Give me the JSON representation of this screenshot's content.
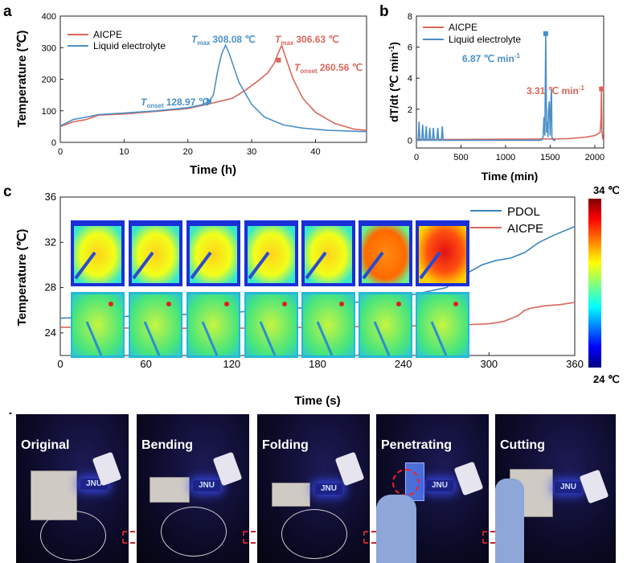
{
  "panel_labels": {
    "a": "a",
    "b": "b",
    "c": "c",
    "d": "d"
  },
  "chart_data": [
    {
      "id": "a",
      "type": "line",
      "xlabel": "Time (h)",
      "ylabel": "Temperature (℃)",
      "xlim": [
        0,
        48
      ],
      "ylim": [
        0,
        400
      ],
      "xticks": [
        "0",
        "10",
        "20",
        "30",
        "40"
      ],
      "yticks": [
        "0",
        "100",
        "200",
        "300",
        "400"
      ],
      "legend": "top-left",
      "series": [
        {
          "name": "AICPE",
          "color": "#d9665a",
          "x": [
            0,
            2,
            4,
            6,
            10,
            15,
            20,
            24,
            27,
            29,
            31,
            32.5,
            33.5,
            34.3,
            34.7,
            35.3,
            36.5,
            38,
            40,
            43,
            46,
            48
          ],
          "y": [
            50,
            65,
            72,
            86,
            90,
            98,
            107,
            125,
            140,
            165,
            195,
            220,
            250,
            290,
            306.63,
            270,
            200,
            140,
            95,
            60,
            42,
            38
          ]
        },
        {
          "name": "Liquid electrolyte",
          "color": "#4a90c8",
          "x": [
            0,
            2,
            4,
            6,
            10,
            15,
            20,
            22,
            23.3,
            24,
            24.7,
            25.3,
            25.9,
            26.5,
            28,
            30,
            32,
            35,
            38,
            42,
            48
          ],
          "y": [
            52,
            72,
            80,
            88,
            93,
            100,
            110,
            118,
            128.97,
            150,
            230,
            280,
            308.08,
            280,
            190,
            120,
            80,
            55,
            45,
            38,
            34
          ]
        }
      ],
      "markers": [
        {
          "series": "Liquid electrolyte",
          "x": 23.3,
          "y": 128.97
        },
        {
          "series": "AICPE",
          "x": 34.2,
          "y": 260.56
        }
      ],
      "annotations": [
        {
          "sym": "T",
          "sub": "max",
          "value": "308.08 ℃",
          "color": "#4a90c8"
        },
        {
          "sym": "T",
          "sub": "max",
          "value": "306.63 ℃",
          "color": "#d9665a"
        },
        {
          "sym": "T",
          "sub": "onset",
          "value": "128.97 ℃",
          "color": "#4a90c8"
        },
        {
          "sym": "T",
          "sub": "onset",
          "value": "260.56 ℃",
          "color": "#d9665a"
        }
      ]
    },
    {
      "id": "b",
      "type": "line",
      "xlabel": "Time (min)",
      "ylabel_parts": [
        "dT/dt (℃ min",
        "-1",
        ")"
      ],
      "xlim": [
        0,
        2100
      ],
      "ylim": [
        -0.5,
        8
      ],
      "xticks": [
        "0",
        "500",
        "1000",
        "1500",
        "2000"
      ],
      "yticks": [
        "0",
        "2",
        "4",
        "6",
        "8"
      ],
      "legend": "top-left",
      "series": [
        {
          "name": "AICPE",
          "color": "#d9665a",
          "x": [
            0,
            400,
            800,
            1200,
            1500,
            1700,
            1900,
            2000,
            2060,
            2070,
            2075,
            2080,
            2090,
            2100
          ],
          "y": [
            0.05,
            0.05,
            0.06,
            0.07,
            0.08,
            0.1,
            0.2,
            0.3,
            0.5,
            1.5,
            3.31,
            0.6,
            0.1,
            0.0
          ]
        },
        {
          "name": "Liquid electrolyte",
          "color": "#4a90c8",
          "x": [
            0,
            20,
            30,
            40,
            60,
            70,
            80,
            100,
            110,
            120,
            140,
            150,
            160,
            180,
            190,
            200,
            230,
            240,
            250,
            280,
            290,
            300,
            330,
            600,
            900,
            1200,
            1400,
            1420,
            1430,
            1440,
            1450,
            1460,
            1470,
            1475,
            1480,
            1490,
            1500,
            1510,
            1515,
            1520,
            1525,
            1530,
            1540,
            1560
          ],
          "y": [
            0,
            0,
            1.2,
            0,
            0,
            1.0,
            0,
            0,
            0.9,
            0,
            0,
            0.8,
            0,
            0,
            0.8,
            0,
            0,
            0.8,
            0,
            0,
            0.9,
            0,
            0,
            0,
            0,
            0,
            0,
            0.2,
            1.5,
            0.3,
            6.87,
            0.5,
            1.2,
            0.2,
            1.8,
            2.5,
            0.3,
            2.8,
            3.3,
            0.2,
            0.1,
            0.05,
            0,
            0
          ]
        }
      ],
      "markers": [
        {
          "series": "Liquid electrolyte",
          "x": 1450,
          "y": 6.87
        },
        {
          "series": "AICPE",
          "x": 2075,
          "y": 3.31
        }
      ],
      "annotations": [
        {
          "value": "6.87 ℃ min",
          "sup": "-1",
          "color": "#4a90c8"
        },
        {
          "value": "3.31 ℃ min",
          "sup": "-1",
          "color": "#d9665a"
        }
      ]
    },
    {
      "id": "c",
      "type": "line",
      "xlabel": "Time (s)",
      "ylabel": "Temperature (℃)",
      "xlim": [
        0,
        360
      ],
      "ylim": [
        22,
        36
      ],
      "xticks": [
        "0",
        "60",
        "120",
        "180",
        "240",
        "300",
        "360"
      ],
      "yticks": [
        "24",
        "28",
        "32",
        "36"
      ],
      "legend": "top-right",
      "series": [
        {
          "name": "PDOL",
          "color": "#3a86b8",
          "x": [
            0,
            60,
            120,
            180,
            240,
            270,
            285,
            295,
            305,
            315,
            325,
            335,
            345,
            360
          ],
          "y": [
            25.3,
            25.5,
            25.8,
            26.3,
            27.2,
            28.0,
            29.3,
            30.0,
            30.4,
            30.6,
            31.1,
            32.0,
            32.6,
            33.4
          ]
        },
        {
          "name": "AICPE",
          "color": "#d9665a",
          "x": [
            0,
            60,
            120,
            180,
            240,
            280,
            300,
            310,
            320,
            325,
            330,
            340,
            350,
            360
          ],
          "y": [
            24.5,
            24.4,
            24.4,
            24.5,
            24.6,
            24.7,
            24.8,
            25.0,
            25.5,
            26.0,
            26.2,
            26.4,
            26.5,
            26.7
          ]
        }
      ],
      "colorbar": {
        "max_label": "34 ℃",
        "min_label": "24 ℃"
      }
    }
  ],
  "photos": [
    {
      "label": "Original",
      "led": "JNU"
    },
    {
      "label": "Bending",
      "led": "JNU"
    },
    {
      "label": "Folding",
      "led": "JNU"
    },
    {
      "label": "Penetrating",
      "led": "JNU"
    },
    {
      "label": "Cutting",
      "led": "JNU"
    }
  ]
}
